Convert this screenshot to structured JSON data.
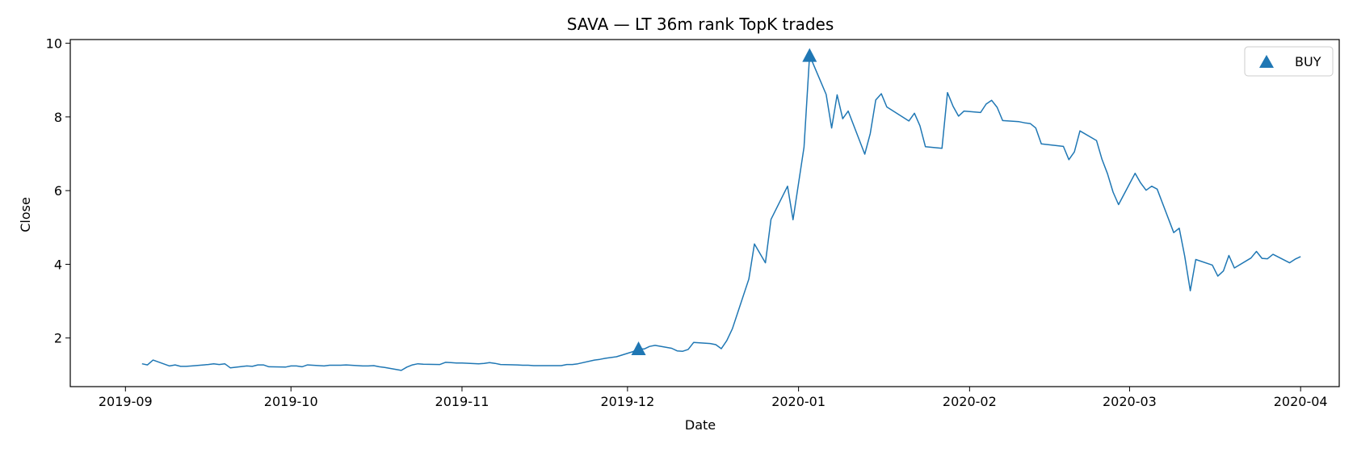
{
  "chart_data": {
    "type": "line",
    "title": "SAVA — LT 36m rank TopK trades",
    "xlabel": "Date",
    "ylabel": "Close",
    "x_ticks": [
      "2019-09",
      "2019-10",
      "2019-11",
      "2019-12",
      "2020-01",
      "2020-02",
      "2020-03",
      "2020-04"
    ],
    "y_ticks": [
      2,
      4,
      6,
      8,
      10
    ],
    "xlim": [
      "2019-08-22",
      "2020-04-08"
    ],
    "ylim": [
      0.68,
      10.1
    ],
    "grid": false,
    "legend_position": "top-right",
    "colors": {
      "series": "#1f77b4",
      "marker": "#1f77b4"
    },
    "series": [
      {
        "x": [
          "2019-09-04",
          "2019-09-05",
          "2019-09-06",
          "2019-09-09",
          "2019-09-10",
          "2019-09-11",
          "2019-09-12",
          "2019-09-13",
          "2019-09-16",
          "2019-09-17",
          "2019-09-18",
          "2019-09-19",
          "2019-09-20",
          "2019-09-23",
          "2019-09-24",
          "2019-09-25",
          "2019-09-26",
          "2019-09-27",
          "2019-09-30",
          "2019-10-01",
          "2019-10-02",
          "2019-10-03",
          "2019-10-04",
          "2019-10-07",
          "2019-10-08",
          "2019-10-09",
          "2019-10-10",
          "2019-10-11",
          "2019-10-14",
          "2019-10-15",
          "2019-10-16",
          "2019-10-17",
          "2019-10-18",
          "2019-10-21",
          "2019-10-22",
          "2019-10-23",
          "2019-10-24",
          "2019-10-25",
          "2019-10-28",
          "2019-10-29",
          "2019-10-30",
          "2019-10-31",
          "2019-11-01",
          "2019-11-04",
          "2019-11-05",
          "2019-11-06",
          "2019-11-07",
          "2019-11-08",
          "2019-11-11",
          "2019-11-12",
          "2019-11-13",
          "2019-11-14",
          "2019-11-15",
          "2019-11-18",
          "2019-11-19",
          "2019-11-20",
          "2019-11-21",
          "2019-11-22",
          "2019-11-25",
          "2019-11-26",
          "2019-11-27",
          "2019-11-29",
          "2019-12-02",
          "2019-12-03",
          "2019-12-04",
          "2019-12-05",
          "2019-12-06",
          "2019-12-09",
          "2019-12-10",
          "2019-12-11",
          "2019-12-12",
          "2019-12-13",
          "2019-12-16",
          "2019-12-17",
          "2019-12-18",
          "2019-12-19",
          "2019-12-20",
          "2019-12-23",
          "2019-12-24",
          "2019-12-26",
          "2019-12-27",
          "2019-12-30",
          "2019-12-31",
          "2020-01-02",
          "2020-01-03",
          "2020-01-06",
          "2020-01-07",
          "2020-01-08",
          "2020-01-09",
          "2020-01-10",
          "2020-01-13",
          "2020-01-14",
          "2020-01-15",
          "2020-01-16",
          "2020-01-17",
          "2020-01-21",
          "2020-01-22",
          "2020-01-23",
          "2020-01-24",
          "2020-01-27",
          "2020-01-28",
          "2020-01-29",
          "2020-01-30",
          "2020-01-31",
          "2020-02-03",
          "2020-02-04",
          "2020-02-05",
          "2020-02-06",
          "2020-02-07",
          "2020-02-10",
          "2020-02-11",
          "2020-02-12",
          "2020-02-13",
          "2020-02-14",
          "2020-02-18",
          "2020-02-19",
          "2020-02-20",
          "2020-02-21",
          "2020-02-24",
          "2020-02-25",
          "2020-02-26",
          "2020-02-27",
          "2020-02-28",
          "2020-03-02",
          "2020-03-03",
          "2020-03-04",
          "2020-03-05",
          "2020-03-06",
          "2020-03-09",
          "2020-03-10",
          "2020-03-11",
          "2020-03-12",
          "2020-03-13",
          "2020-03-16",
          "2020-03-17",
          "2020-03-18",
          "2020-03-19",
          "2020-03-20",
          "2020-03-23",
          "2020-03-24",
          "2020-03-25",
          "2020-03-26",
          "2020-03-27",
          "2020-03-30",
          "2020-03-31",
          "2020-04-01"
        ],
        "values": [
          1.3,
          1.27,
          1.4,
          1.24,
          1.27,
          1.23,
          1.23,
          1.24,
          1.28,
          1.3,
          1.28,
          1.3,
          1.19,
          1.24,
          1.23,
          1.27,
          1.27,
          1.22,
          1.21,
          1.24,
          1.24,
          1.22,
          1.27,
          1.24,
          1.26,
          1.26,
          1.26,
          1.27,
          1.24,
          1.24,
          1.25,
          1.22,
          1.2,
          1.12,
          1.21,
          1.27,
          1.3,
          1.29,
          1.28,
          1.34,
          1.33,
          1.32,
          1.32,
          1.3,
          1.31,
          1.33,
          1.31,
          1.28,
          1.27,
          1.26,
          1.26,
          1.25,
          1.25,
          1.25,
          1.25,
          1.28,
          1.28,
          1.3,
          1.4,
          1.42,
          1.45,
          1.49,
          1.63,
          1.71,
          1.7,
          1.77,
          1.8,
          1.72,
          1.65,
          1.64,
          1.69,
          1.88,
          1.85,
          1.82,
          1.71,
          1.93,
          2.25,
          3.6,
          4.55,
          4.04,
          5.22,
          6.12,
          5.21,
          7.18,
          9.67,
          8.61,
          7.7,
          8.6,
          7.95,
          8.16,
          6.99,
          7.55,
          8.46,
          8.63,
          8.27,
          7.89,
          8.1,
          7.76,
          7.19,
          7.15,
          8.66,
          8.29,
          8.02,
          8.16,
          8.12,
          8.35,
          8.45,
          8.26,
          7.9,
          7.87,
          7.84,
          7.82,
          7.7,
          7.27,
          7.2,
          6.84,
          7.05,
          7.62,
          7.36,
          6.85,
          6.46,
          5.96,
          5.62,
          6.47,
          6.21,
          6.01,
          6.12,
          6.04,
          4.86,
          4.98,
          4.22,
          3.28,
          4.13,
          3.98,
          3.68,
          3.82,
          4.24,
          3.9,
          4.17,
          4.35,
          4.16,
          4.15,
          4.27,
          4.04,
          4.14,
          4.21
        ]
      }
    ],
    "markers": [
      {
        "label": "BUY",
        "x": "2019-12-03",
        "y": 1.71
      },
      {
        "label": "BUY",
        "x": "2020-01-03",
        "y": 9.67
      }
    ],
    "legend": [
      {
        "label": "BUY"
      }
    ]
  }
}
